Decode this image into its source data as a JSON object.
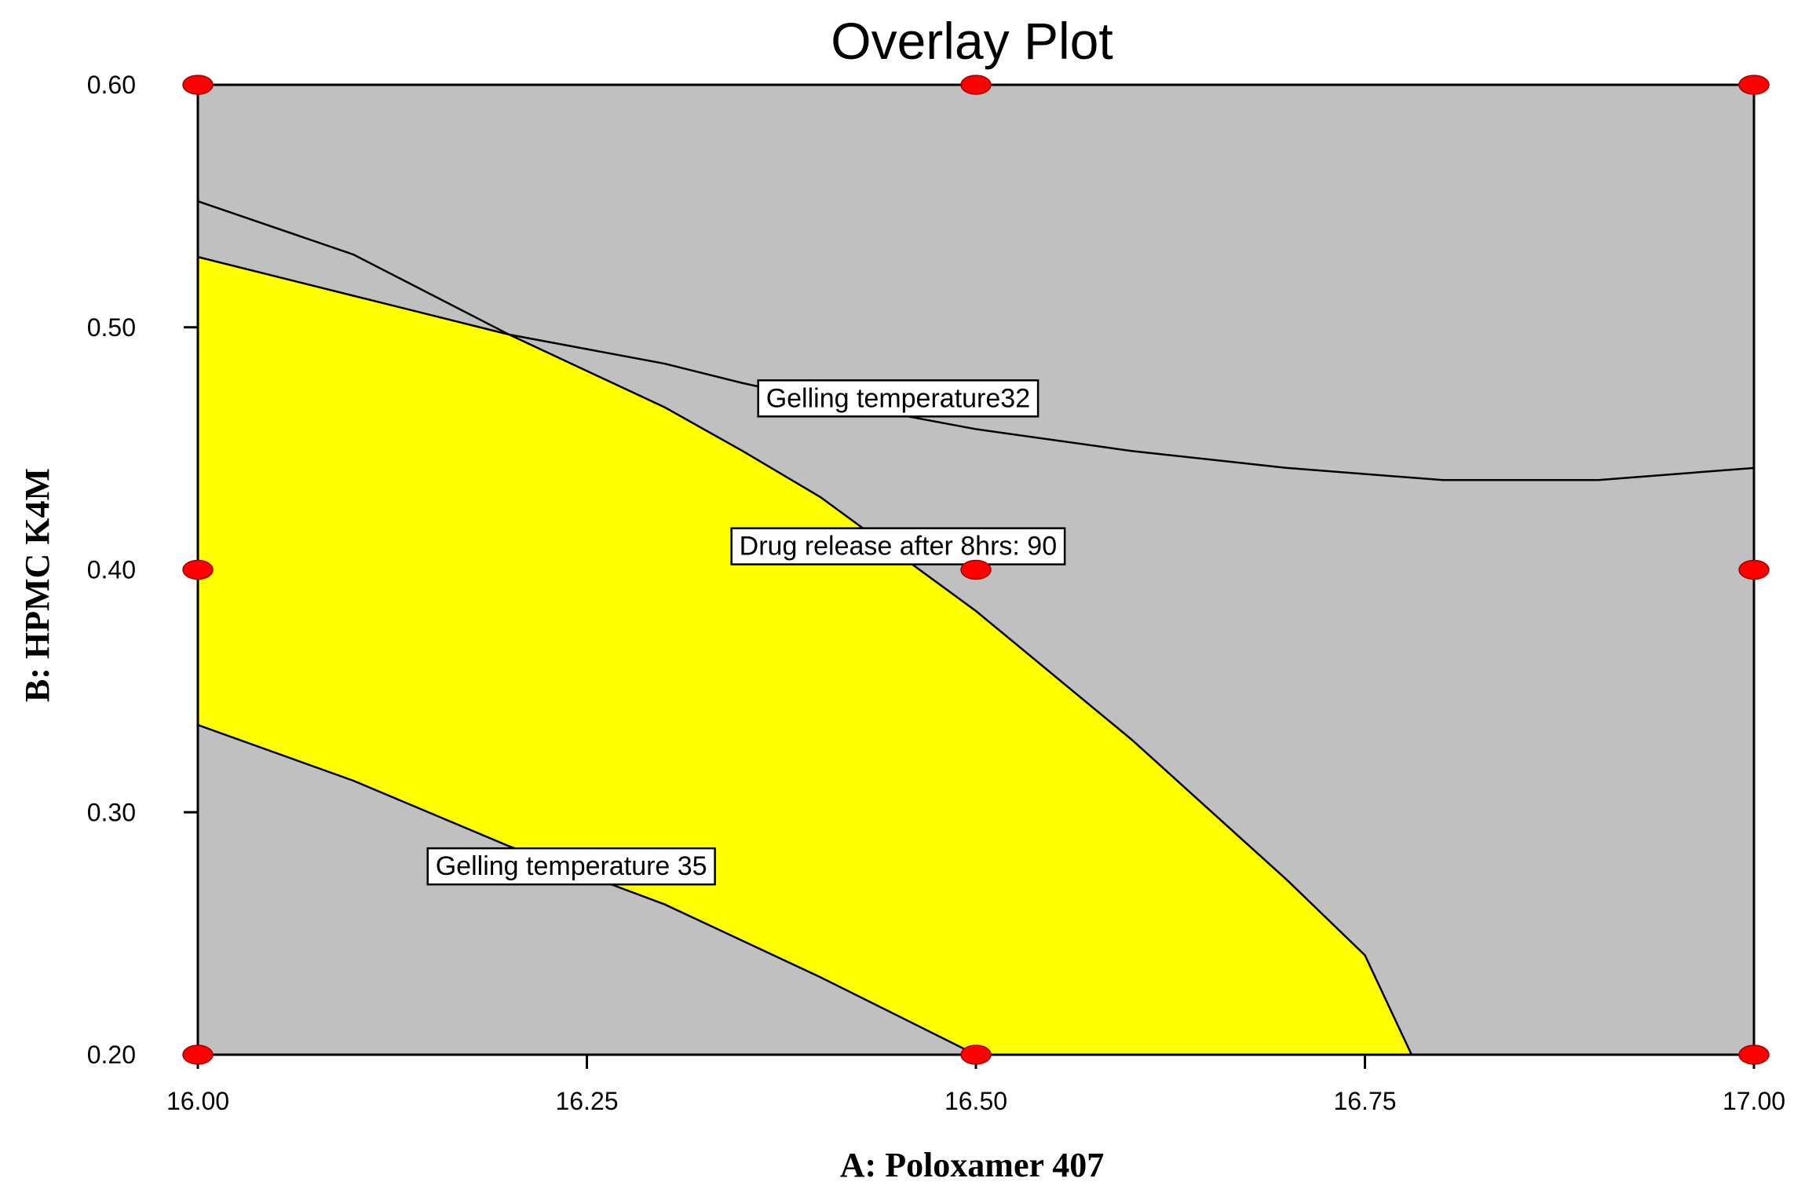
{
  "chart_data": {
    "type": "contour-overlay",
    "title": "Overlay Plot",
    "xlabel": "A: Poloxamer 407",
    "ylabel": "B: HPMC K4M",
    "xlim": [
      16.0,
      17.0
    ],
    "ylim": [
      0.2,
      0.6
    ],
    "xticks": [
      "16.00",
      "16.25",
      "16.50",
      "16.75",
      "17.00"
    ],
    "xtick_values": [
      16.0,
      16.25,
      16.5,
      16.75,
      17.0
    ],
    "yticks": [
      "0.20",
      "0.30",
      "0.40",
      "0.50",
      "0.60"
    ],
    "ytick_values": [
      0.2,
      0.3,
      0.4,
      0.5,
      0.6
    ],
    "colors": {
      "background": "#c0c0c0",
      "feasible_region": "#ffff00",
      "contour": "#000000",
      "design_point": "#ff0000"
    },
    "contours": [
      {
        "label": "Gelling temperature32",
        "label_at": [
          16.45,
          0.471
        ],
        "points": [
          [
            16.0,
            0.529
          ],
          [
            16.1,
            0.513
          ],
          [
            16.2,
            0.497
          ],
          [
            16.3,
            0.485
          ],
          [
            16.35,
            0.477
          ],
          [
            16.4,
            0.47
          ],
          [
            16.5,
            0.458
          ],
          [
            16.6,
            0.449
          ],
          [
            16.7,
            0.442
          ],
          [
            16.8,
            0.437
          ],
          [
            16.9,
            0.437
          ],
          [
            17.0,
            0.442
          ]
        ]
      },
      {
        "label": "Drug release after 8hrs: 90",
        "label_at": [
          16.45,
          0.41
        ],
        "points": [
          [
            16.0,
            0.552
          ],
          [
            16.1,
            0.53
          ],
          [
            16.2,
            0.497
          ],
          [
            16.3,
            0.467
          ],
          [
            16.35,
            0.449
          ],
          [
            16.4,
            0.43
          ],
          [
            16.5,
            0.383
          ],
          [
            16.6,
            0.33
          ],
          [
            16.7,
            0.272
          ],
          [
            16.75,
            0.241
          ],
          [
            16.78,
            0.2
          ]
        ]
      },
      {
        "label": "Gelling temperature 35",
        "label_at": [
          16.24,
          0.278
        ],
        "points": [
          [
            16.0,
            0.336
          ],
          [
            16.1,
            0.313
          ],
          [
            16.2,
            0.286
          ],
          [
            16.3,
            0.262
          ],
          [
            16.4,
            0.232
          ],
          [
            16.5,
            0.2
          ]
        ]
      }
    ],
    "design_points": [
      [
        16.0,
        0.6
      ],
      [
        16.5,
        0.6
      ],
      [
        17.0,
        0.6
      ],
      [
        16.0,
        0.4
      ],
      [
        16.5,
        0.4
      ],
      [
        17.0,
        0.4
      ],
      [
        16.0,
        0.2
      ],
      [
        16.5,
        0.2
      ],
      [
        17.0,
        0.2
      ]
    ]
  }
}
